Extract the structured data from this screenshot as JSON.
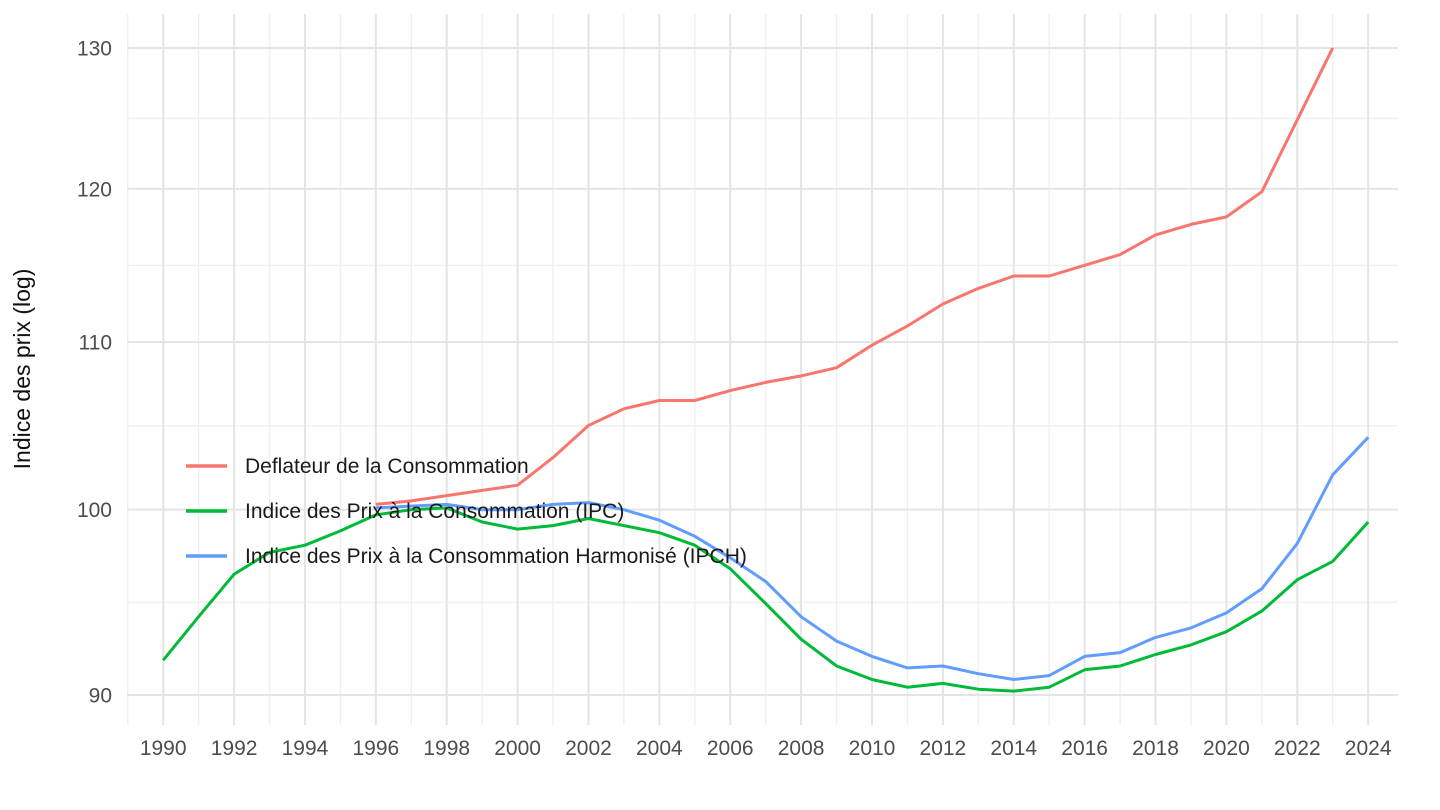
{
  "page": {
    "background": "#ffffff"
  },
  "colors": {
    "grid_major": "#e4e4e4",
    "grid_minor": "#efefef",
    "tick_label_color": "#4d4d4d",
    "text_color": "#1a1a1a"
  },
  "chart_data": {
    "type": "line",
    "title": "",
    "xlabel": "",
    "ylabel": "Indice des prix (log)",
    "y_scale": "log",
    "grid": "on",
    "legend_position": "inside-left",
    "x_range": [
      1989,
      2025
    ],
    "y_ticks": [
      90,
      100,
      110,
      120,
      130
    ],
    "y_minor_ticks": [
      94.87,
      104.88,
      114.89,
      124.9
    ],
    "x_ticks": [
      1990,
      1992,
      1994,
      1996,
      1998,
      2000,
      2002,
      2004,
      2006,
      2008,
      2010,
      2012,
      2014,
      2016,
      2018,
      2020,
      2022,
      2024
    ],
    "series": [
      {
        "id": "deflateur",
        "name": "Deflateur de la Consommation",
        "color": "#F8766D",
        "start_year": 1996,
        "values": [
          100.3,
          100.5,
          100.8,
          101.1,
          101.4,
          103.0,
          104.9,
          105.9,
          106.4,
          106.4,
          107.0,
          107.5,
          107.9,
          108.4,
          109.8,
          111.0,
          112.4,
          113.4,
          114.2,
          114.2,
          114.9,
          115.6,
          116.9,
          117.6,
          118.1,
          119.8,
          124.8,
          130.0
        ]
      },
      {
        "id": "ipc",
        "name": "Indice des Prix à la Consommation (IPC)",
        "color": "#00BA38",
        "start_year": 1990,
        "values": [
          91.8,
          94.1,
          96.4,
          97.6,
          98.0,
          98.8,
          99.7,
          100.0,
          100.1,
          99.3,
          98.9,
          99.1,
          99.5,
          99.1,
          98.7,
          98.0,
          96.7,
          94.8,
          92.9,
          91.5,
          90.8,
          90.4,
          90.6,
          90.3,
          90.2,
          90.4,
          91.3,
          91.5,
          92.1,
          92.6,
          93.3,
          94.4,
          96.1,
          97.1,
          99.3
        ]
      },
      {
        "id": "ipch",
        "name": "Indice des Prix à la Consommation Harmonisé (IPCH)",
        "color": "#619CFF",
        "start_year": 1996,
        "values": [
          100.1,
          100.2,
          100.3,
          100.0,
          100.0,
          100.3,
          100.4,
          100.0,
          99.4,
          98.5,
          97.3,
          96.0,
          94.1,
          92.8,
          92.0,
          91.4,
          91.5,
          91.1,
          90.8,
          91.0,
          92.0,
          92.2,
          93.0,
          93.5,
          94.3,
          95.6,
          98.1,
          102.0,
          104.2
        ]
      }
    ]
  }
}
